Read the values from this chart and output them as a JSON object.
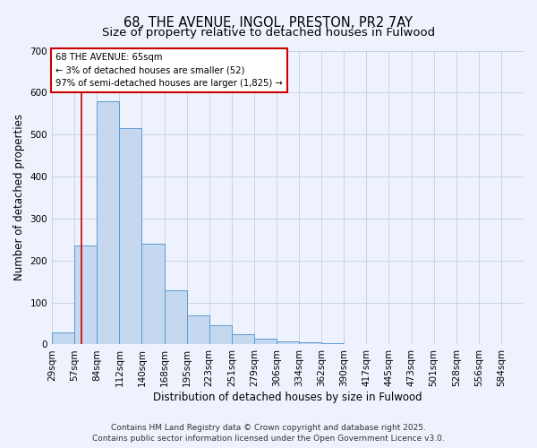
{
  "title": "68, THE AVENUE, INGOL, PRESTON, PR2 7AY",
  "subtitle": "Size of property relative to detached houses in Fulwood",
  "xlabel": "Distribution of detached houses by size in Fulwood",
  "ylabel": "Number of detached properties",
  "bar_labels": [
    "29sqm",
    "57sqm",
    "84sqm",
    "112sqm",
    "140sqm",
    "168sqm",
    "195sqm",
    "223sqm",
    "251sqm",
    "279sqm",
    "306sqm",
    "334sqm",
    "362sqm",
    "390sqm",
    "417sqm",
    "445sqm",
    "473sqm",
    "501sqm",
    "528sqm",
    "556sqm",
    "584sqm"
  ],
  "bar_values": [
    28,
    235,
    580,
    515,
    240,
    128,
    70,
    45,
    25,
    13,
    8,
    5,
    3,
    2,
    1,
    0,
    0,
    0,
    0,
    0,
    2
  ],
  "bar_color": "#c5d8f0",
  "bar_edge_color": "#5b9bd5",
  "annotation_title": "68 THE AVENUE: 65sqm",
  "annotation_line1": "← 3% of detached houses are smaller (52)",
  "annotation_line2": "97% of semi-detached houses are larger (1,825) →",
  "annotation_box_color": "#ffffff",
  "annotation_box_edge": "#cc0000",
  "vline_color": "#cc0000",
  "footer1": "Contains HM Land Registry data © Crown copyright and database right 2025.",
  "footer2": "Contains public sector information licensed under the Open Government Licence v3.0.",
  "ylim": [
    0,
    700
  ],
  "yticks": [
    0,
    100,
    200,
    300,
    400,
    500,
    600,
    700
  ],
  "background_color": "#eef2fc",
  "grid_color": "#c8d4ec",
  "title_fontsize": 10.5,
  "subtitle_fontsize": 9.5,
  "axis_label_fontsize": 8.5,
  "tick_fontsize": 7.5,
  "footer_fontsize": 6.5
}
